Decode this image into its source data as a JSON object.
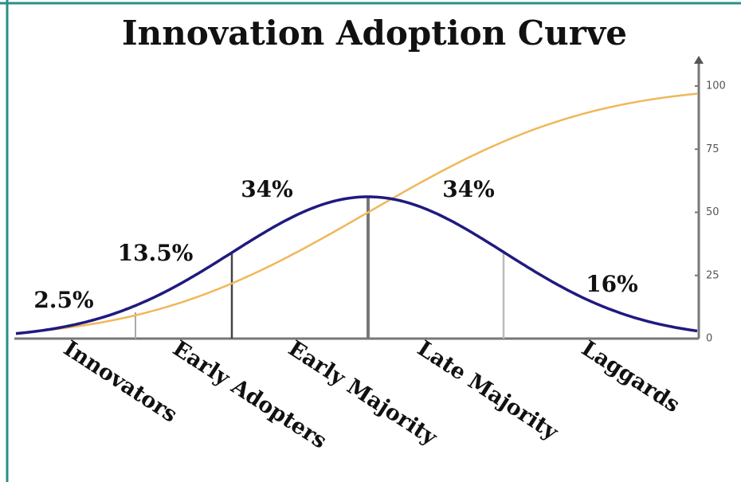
{
  "chart_data": {
    "type": "adoption_curve",
    "title": "Innovation Adoption Curve",
    "categories": [
      "Innovators",
      "Early Adopters",
      "Early Majority",
      "Late Majority",
      "Laggards"
    ],
    "values": [
      2.5,
      13.5,
      34,
      34,
      16
    ],
    "value_labels": [
      "2.5%",
      "13.5%",
      "34%",
      "34%",
      "16%"
    ],
    "bell_color": "#1f1a80",
    "cumulative_color": "#f0b75a",
    "y2lim": [
      0,
      100
    ],
    "y2ticks": [
      0,
      25,
      50,
      75,
      100
    ]
  }
}
